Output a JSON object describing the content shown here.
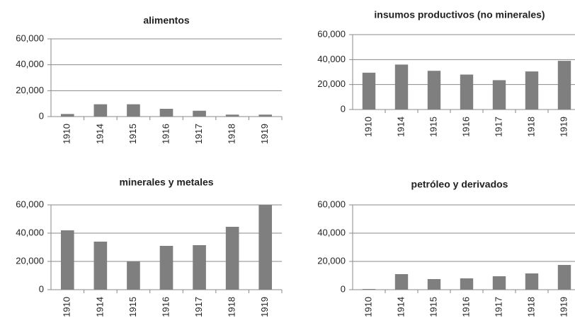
{
  "chart_data": [
    {
      "type": "bar",
      "title": "alimentos",
      "categories": [
        "1910",
        "1914",
        "1915",
        "1916",
        "1917",
        "1918",
        "1919"
      ],
      "values": [
        2000,
        9500,
        9500,
        6000,
        4500,
        1500,
        1500
      ],
      "color": "#7f7f7f",
      "ylim": [
        0,
        60000
      ],
      "yticks": [
        0,
        {
          "value": 20000,
          "label": "20,000"
        },
        {
          "value": 40000,
          "label": "40,000"
        },
        {
          "value": 60000,
          "label": "60,000"
        }
      ],
      "grid": true
    },
    {
      "type": "bar",
      "title": "insumos productivos (no minerales)",
      "categories": [
        "1910",
        "1914",
        "1915",
        "1916",
        "1917",
        "1918",
        "1919"
      ],
      "values": [
        29500,
        36000,
        31000,
        28000,
        23500,
        30500,
        39000
      ],
      "color": "#7f7f7f",
      "ylim": [
        0,
        60000
      ],
      "yticks": [
        0,
        {
          "value": 20000,
          "label": "20,000"
        },
        {
          "value": 40000,
          "label": "40,000"
        },
        {
          "value": 60000,
          "label": "60,000"
        }
      ],
      "grid": true
    },
    {
      "type": "bar",
      "title": "minerales y metales",
      "categories": [
        "1910",
        "1914",
        "1915",
        "1916",
        "1917",
        "1918",
        "1919"
      ],
      "values": [
        42000,
        34000,
        20000,
        31000,
        31500,
        44500,
        60000
      ],
      "color": "#7f7f7f",
      "ylim": [
        0,
        60000
      ],
      "yticks": [
        0,
        {
          "value": 20000,
          "label": "20,000"
        },
        {
          "value": 40000,
          "label": "40,000"
        },
        {
          "value": 60000,
          "label": "60,000"
        }
      ],
      "grid": true
    },
    {
      "type": "bar",
      "title": "petróleo y derivados",
      "categories": [
        "1910",
        "1914",
        "1915",
        "1916",
        "1917",
        "1918",
        "1919"
      ],
      "values": [
        500,
        11000,
        7500,
        8000,
        9500,
        11500,
        17500
      ],
      "color": "#7f7f7f",
      "ylim": [
        0,
        60000
      ],
      "yticks": [
        0,
        {
          "value": 20000,
          "label": "20,000"
        },
        {
          "value": 40000,
          "label": "40,000"
        },
        {
          "value": 60000,
          "label": "60,000"
        }
      ],
      "grid": true
    }
  ]
}
